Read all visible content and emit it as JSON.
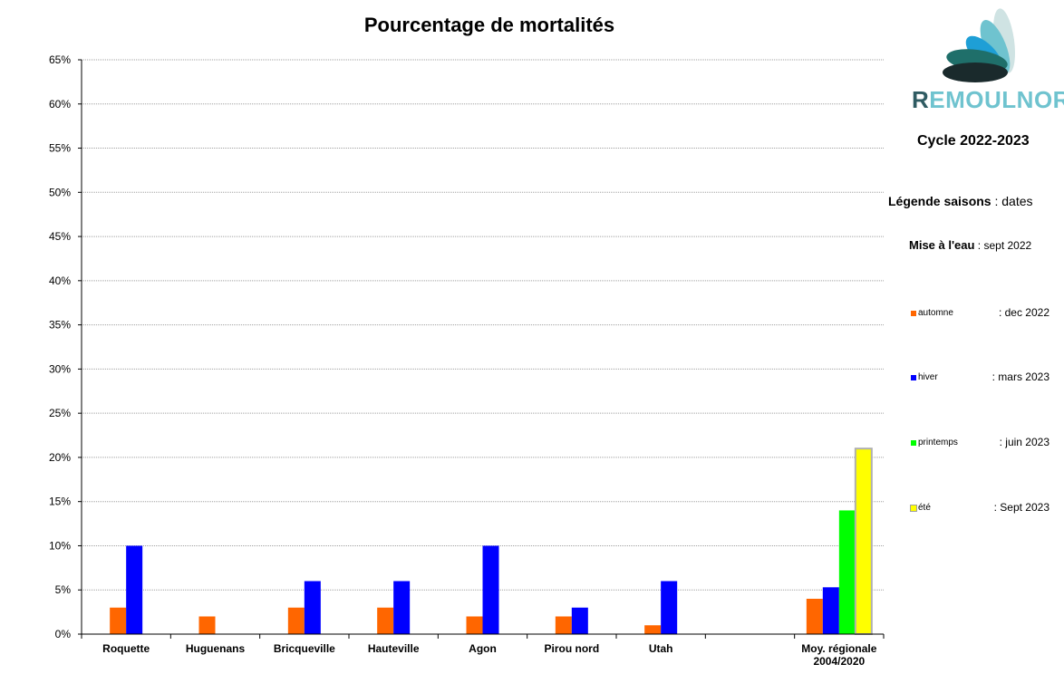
{
  "chart_data": {
    "type": "bar",
    "title": "Pourcentage de mortalités",
    "categories": [
      "Roquette",
      "Huguenans",
      "Bricqueville",
      "Hauteville",
      "Agon",
      "Pirou nord",
      "Utah",
      "",
      "Moy. régionale\n2004/2020"
    ],
    "series": [
      {
        "name": "automne",
        "color": "#ff6600",
        "values": [
          3,
          2,
          3,
          3,
          2,
          2,
          1,
          null,
          4
        ]
      },
      {
        "name": "hiver",
        "color": "#0000ff",
        "values": [
          10,
          null,
          6,
          6,
          10,
          3,
          6,
          null,
          5.3
        ]
      },
      {
        "name": "printemps",
        "color": "#00ff00",
        "values": [
          null,
          null,
          null,
          null,
          null,
          null,
          null,
          null,
          14
        ]
      },
      {
        "name": "été",
        "color": "#ffff00",
        "values": [
          null,
          null,
          null,
          null,
          null,
          null,
          null,
          null,
          21
        ]
      }
    ],
    "ylim": [
      0,
      65
    ],
    "yticks": [
      "0%",
      "5%",
      "10%",
      "15%",
      "20%",
      "25%",
      "30%",
      "35%",
      "40%",
      "45%",
      "50%",
      "55%",
      "60%",
      "65%"
    ],
    "grid": true,
    "legend": "right"
  },
  "side": {
    "logo_first": "R",
    "logo_rest": "EMOULNOR",
    "cycle": "Cycle 2022-2023",
    "legend_title": "Légende saisons",
    "legend_colon": " : ",
    "legend_dates": "dates",
    "mise_label": "Mise à l'eau",
    "mise_date": " : sept 2022",
    "items": [
      {
        "label": "automne",
        "date": ": dec 2022",
        "color": "#ff6600"
      },
      {
        "label": "hiver",
        "date": ": mars 2023",
        "color": "#0000ff"
      },
      {
        "label": "printemps",
        "date": ":  juin 2023",
        "color": "#00ff00"
      },
      {
        "label": "été",
        "date": ": Sept 2023",
        "color": "#ffff00"
      }
    ]
  }
}
